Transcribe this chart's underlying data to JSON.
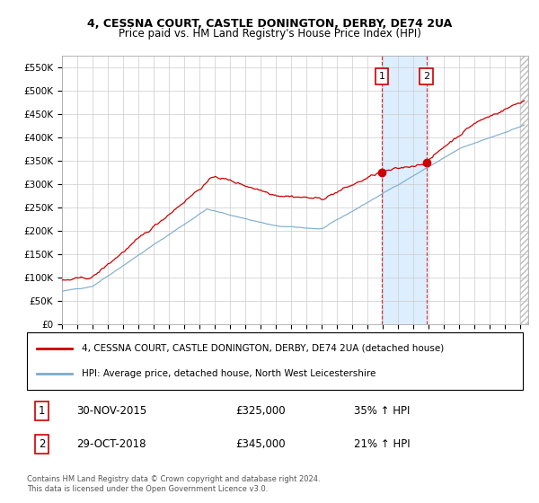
{
  "title1": "4, CESSNA COURT, CASTLE DONINGTON, DERBY, DE74 2UA",
  "title2": "Price paid vs. HM Land Registry's House Price Index (HPI)",
  "ylim": [
    0,
    575000
  ],
  "yticks": [
    0,
    50000,
    100000,
    150000,
    200000,
    250000,
    300000,
    350000,
    400000,
    450000,
    500000,
    550000
  ],
  "ytick_labels": [
    "£0",
    "£50K",
    "£100K",
    "£150K",
    "£200K",
    "£250K",
    "£300K",
    "£350K",
    "£400K",
    "£450K",
    "£500K",
    "£550K"
  ],
  "line_color_red": "#cc0000",
  "line_color_blue": "#7aabcc",
  "background_color": "#ffffff",
  "grid_color": "#cccccc",
  "sale1_date": 2015.917,
  "sale1_price": 325000,
  "sale1_label": "1",
  "sale2_date": 2018.833,
  "sale2_price": 345000,
  "sale2_label": "2",
  "shade_color": "#ddeeff",
  "marker_box_color": "#cc0000",
  "legend_line1": "4, CESSNA COURT, CASTLE DONINGTON, DERBY, DE74 2UA (detached house)",
  "legend_line2": "HPI: Average price, detached house, North West Leicestershire",
  "ann1_num": "1",
  "ann1_date": "30-NOV-2015",
  "ann1_price": "£325,000",
  "ann1_hpi": "35% ↑ HPI",
  "ann2_num": "2",
  "ann2_date": "29-OCT-2018",
  "ann2_price": "£345,000",
  "ann2_hpi": "21% ↑ HPI",
  "footer": "Contains HM Land Registry data © Crown copyright and database right 2024.\nThis data is licensed under the Open Government Licence v3.0.",
  "xmin": 1995,
  "xmax": 2025.5
}
